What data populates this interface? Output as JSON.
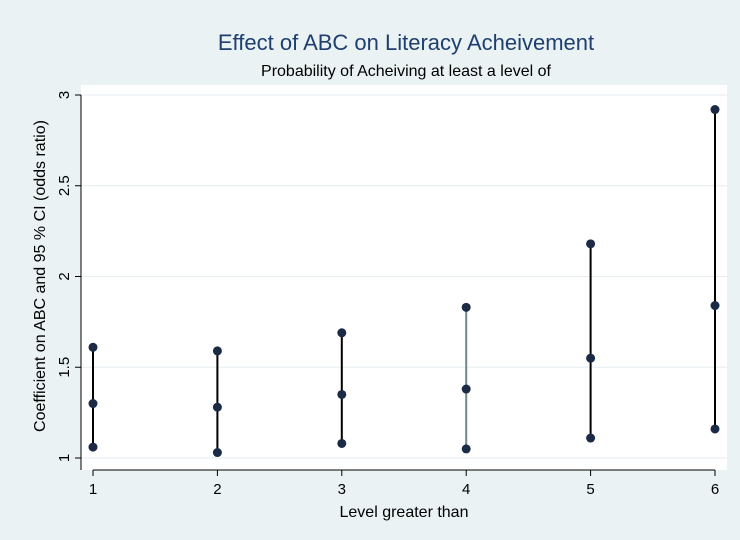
{
  "chart_data": {
    "type": "scatter",
    "title": "Effect of ABC on Literacy Acheivement",
    "subtitle": "Probability of Acheiving at least a level of",
    "xlabel": "Level greater than",
    "ylabel": "Coefficient on ABC and 95 % CI (odds ratio)",
    "xlim": [
      1,
      6
    ],
    "ylim": [
      1,
      3
    ],
    "xticks": [
      "1",
      "2",
      "3",
      "4",
      "5",
      "6"
    ],
    "yticks": [
      "1",
      "1.5",
      "2",
      "2.5",
      "3"
    ],
    "grid": true,
    "points": [
      {
        "x": 1,
        "lower": 1.06,
        "estimate": 1.3,
        "upper": 1.61
      },
      {
        "x": 2,
        "lower": 1.03,
        "estimate": 1.28,
        "upper": 1.59
      },
      {
        "x": 3,
        "lower": 1.08,
        "estimate": 1.35,
        "upper": 1.69
      },
      {
        "x": 4,
        "lower": 1.05,
        "estimate": 1.38,
        "upper": 1.83
      },
      {
        "x": 5,
        "lower": 1.11,
        "estimate": 1.55,
        "upper": 2.18
      },
      {
        "x": 6,
        "lower": 1.16,
        "estimate": 1.84,
        "upper": 2.92
      }
    ],
    "colors": {
      "background": "#eaf2f3",
      "plot_background": "#ffffff",
      "title": "#1f3f6e",
      "marker": "#1b2b46",
      "interval": "#000000",
      "interval_highlight": "#6e8b8b",
      "grid": "#e6eef0",
      "axis": "#000000"
    }
  }
}
